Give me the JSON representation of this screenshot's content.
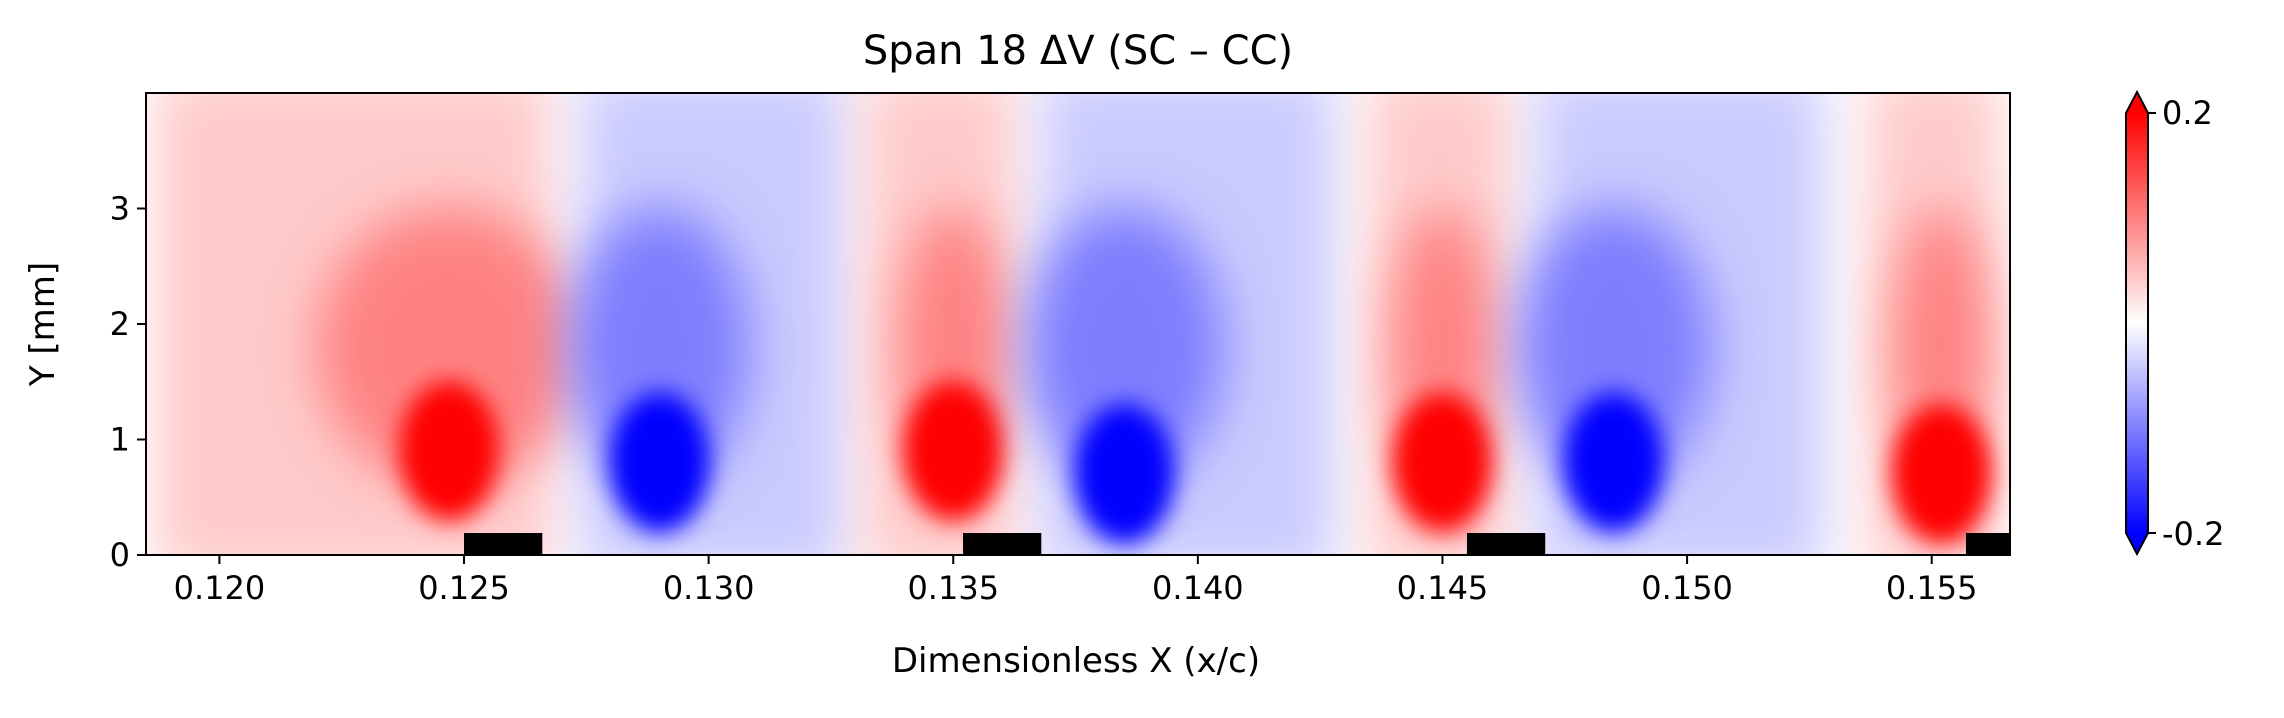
{
  "chart_data": {
    "type": "heatmap",
    "title": "Span 18  ΔV (SC – CC)",
    "xlabel": "Dimensionless X (x/c)",
    "ylabel": "Y [mm]",
    "xlim": [
      0.1185,
      0.1566
    ],
    "ylim": [
      0,
      4.0
    ],
    "x_ticks": [
      0.12,
      0.125,
      0.13,
      0.135,
      0.14,
      0.145,
      0.15,
      0.155
    ],
    "x_tick_labels": [
      "0.120",
      "0.125",
      "0.130",
      "0.135",
      "0.140",
      "0.145",
      "0.150",
      "0.155"
    ],
    "y_ticks": [
      0,
      1,
      2,
      3
    ],
    "y_tick_labels": [
      "0",
      "1",
      "2",
      "3"
    ],
    "colormap": "bwr",
    "colorbar": {
      "vmin": -0.2,
      "vmax": 0.2,
      "tick_labels": [
        "-0.2",
        "0.2"
      ],
      "extend": "both"
    },
    "regions": [
      {
        "sign": "positive",
        "x_center": 0.1247,
        "x_start": 0.1185,
        "x_end": 0.127,
        "core_y": 0.9
      },
      {
        "sign": "negative",
        "x_center": 0.129,
        "x_start": 0.1272,
        "x_end": 0.133,
        "core_y": 0.8
      },
      {
        "sign": "positive",
        "x_center": 0.135,
        "x_start": 0.133,
        "x_end": 0.1365,
        "core_y": 0.9
      },
      {
        "sign": "negative",
        "x_center": 0.1385,
        "x_start": 0.1366,
        "x_end": 0.143,
        "core_y": 0.7
      },
      {
        "sign": "positive",
        "x_center": 0.145,
        "x_start": 0.1433,
        "x_end": 0.1466,
        "core_y": 0.8
      },
      {
        "sign": "negative",
        "x_center": 0.1485,
        "x_start": 0.1467,
        "x_end": 0.153,
        "core_y": 0.8
      },
      {
        "sign": "positive",
        "x_center": 0.1552,
        "x_start": 0.1535,
        "x_end": 0.1566,
        "core_y": 0.7
      }
    ],
    "wall_elements": [
      {
        "x_start": 0.125,
        "x_end": 0.1266
      },
      {
        "x_start": 0.1352,
        "x_end": 0.1368
      },
      {
        "x_start": 0.1455,
        "x_end": 0.1471
      },
      {
        "x_start": 0.1557,
        "x_end": 0.1566
      }
    ]
  }
}
